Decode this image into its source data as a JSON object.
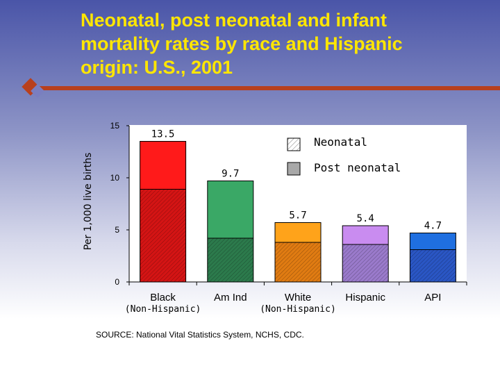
{
  "header": {
    "title": "Neonatal, post neonatal and infant\nmortality rates by race and Hispanic\norigin:  U.S., 2001"
  },
  "source": "SOURCE: National Vital Statistics System, NCHS, CDC.",
  "colors": {
    "title": "#ffe600",
    "rule": "#b8401e",
    "legend_neonatal": "#e0e0e0",
    "legend_post": "#a8a8a8"
  },
  "chart_data": {
    "type": "bar",
    "stacked": true,
    "ylabel": "Per 1,000 live births",
    "ylim": [
      0,
      15
    ],
    "yticks": [
      0,
      5,
      10,
      15
    ],
    "grid": false,
    "legend_placement": "top-right",
    "categories": [
      {
        "name": "Black",
        "sub": "(Non-Hispanic)"
      },
      {
        "name": "Am Ind",
        "sub": ""
      },
      {
        "name": "White",
        "sub": "(Non-Hispanic)"
      },
      {
        "name": "Hispanic",
        "sub": ""
      },
      {
        "name": "API",
        "sub": ""
      }
    ],
    "series": [
      {
        "name": "Neonatal",
        "values": [
          8.9,
          4.2,
          3.8,
          3.6,
          3.1
        ]
      },
      {
        "name": "Post neonatal",
        "values": [
          4.6,
          5.5,
          1.9,
          1.8,
          1.6
        ]
      }
    ],
    "totals": [
      13.5,
      9.7,
      5.7,
      5.4,
      4.7
    ],
    "total_labels": [
      "13.5",
      "9.7",
      "5.7",
      "5.4",
      "4.7"
    ],
    "bar_colors": [
      {
        "top": "#ff1a1a",
        "bottom": "#d41414"
      },
      {
        "top": "#3aa866",
        "bottom": "#2c7a4c"
      },
      {
        "top": "#ffa31a",
        "bottom": "#e07b12"
      },
      {
        "top": "#c98cf0",
        "bottom": "#9a7acb"
      },
      {
        "top": "#1f6fe0",
        "bottom": "#2a56c4"
      }
    ]
  }
}
